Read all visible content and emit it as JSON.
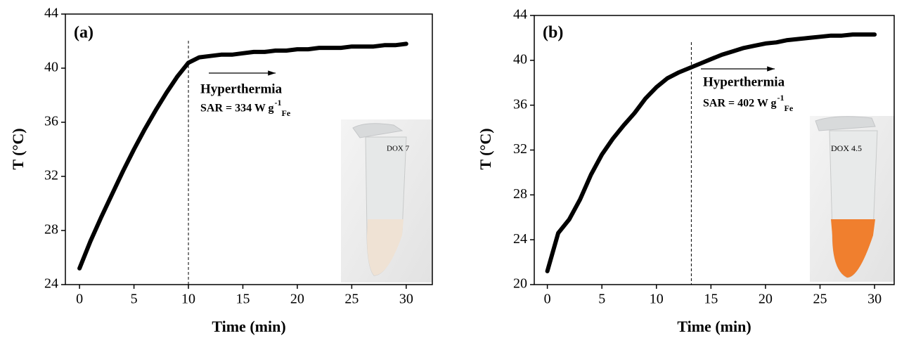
{
  "chart_data": [
    {
      "type": "line",
      "panel_label": "(a)",
      "x_label": "Time (min)",
      "y_label": "T (°C)",
      "x": [
        0,
        1,
        2,
        3,
        4,
        5,
        6,
        7,
        8,
        9,
        10,
        11,
        12,
        13,
        14,
        15,
        16,
        17,
        18,
        19,
        20,
        21,
        22,
        23,
        24,
        25,
        26,
        27,
        28,
        29,
        30
      ],
      "series": [
        {
          "color": "#000000",
          "values": [
            25.2,
            27.2,
            29.0,
            30.7,
            32.4,
            34.0,
            35.5,
            36.9,
            38.2,
            39.4,
            40.4,
            40.8,
            40.9,
            41.0,
            41.0,
            41.1,
            41.2,
            41.2,
            41.3,
            41.3,
            41.4,
            41.4,
            41.5,
            41.5,
            41.5,
            41.6,
            41.6,
            41.6,
            41.7,
            41.7,
            41.8
          ]
        }
      ],
      "xlim": [
        -1.3,
        32.4
      ],
      "xticks": [
        0,
        5,
        10,
        15,
        20,
        25,
        30
      ],
      "ylim": [
        24,
        44
      ],
      "yticks": [
        24,
        28,
        32,
        36,
        40,
        44
      ],
      "vline_x": 10,
      "annotation": "Hyperthermia",
      "sar": "SAR = 334 W g",
      "sar_sup": "-1",
      "sar_sub": "Fe"
    },
    {
      "type": "line",
      "panel_label": "(b)",
      "x_label": "Time (min)",
      "y_label": "T (°C)",
      "x": [
        0,
        1,
        2,
        3,
        4,
        5,
        6,
        7,
        8,
        9,
        10,
        11,
        12,
        13,
        14,
        15,
        16,
        17,
        18,
        19,
        20,
        21,
        22,
        23,
        24,
        25,
        26,
        27,
        28,
        29,
        30
      ],
      "series": [
        {
          "color": "#000000",
          "values": [
            21.2,
            24.6,
            25.8,
            27.6,
            29.8,
            31.6,
            33.0,
            34.2,
            35.3,
            36.6,
            37.6,
            38.4,
            38.9,
            39.3,
            39.7,
            40.1,
            40.5,
            40.8,
            41.1,
            41.3,
            41.5,
            41.6,
            41.8,
            41.9,
            42.0,
            42.1,
            42.2,
            42.2,
            42.3,
            42.3,
            42.3
          ]
        }
      ],
      "xlim": [
        -1.2,
        31.8
      ],
      "xticks": [
        0,
        5,
        10,
        15,
        20,
        25,
        30
      ],
      "ylim": [
        20,
        44
      ],
      "yticks": [
        20,
        24,
        28,
        32,
        36,
        40,
        44
      ],
      "vline_x": 13.2,
      "annotation": "Hyperthermia",
      "sar": "SAR = 402 W g",
      "sar_sup": "-1",
      "sar_sub": "Fe"
    }
  ]
}
